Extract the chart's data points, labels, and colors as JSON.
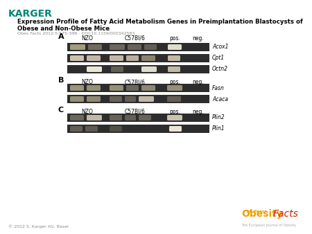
{
  "title_line1": "Expression Profile of Fatty Acid Metabolism Genes in Preimplantation Blastocysts of",
  "title_line2": "Obese and Non-Obese Mice",
  "subtitle": "Obes Facts 2012;5:575–586 · DOI:10.1159/000342583",
  "karger_text": "KARGER",
  "karger_color": "#00857c",
  "bg_color": "#ffffff",
  "footer_left": "© 2012 S. Karger AG, Basel",
  "gel_dark": "#2d2d2d",
  "gel_band_bright": "#e8dcc8",
  "gel_band_medium": "#b0a888",
  "gel_band_dim": "#888070",
  "gel_very_bright": "#f5f0e0",
  "obesity_orange": "#f0a000",
  "obesity_red": "#cc2200"
}
